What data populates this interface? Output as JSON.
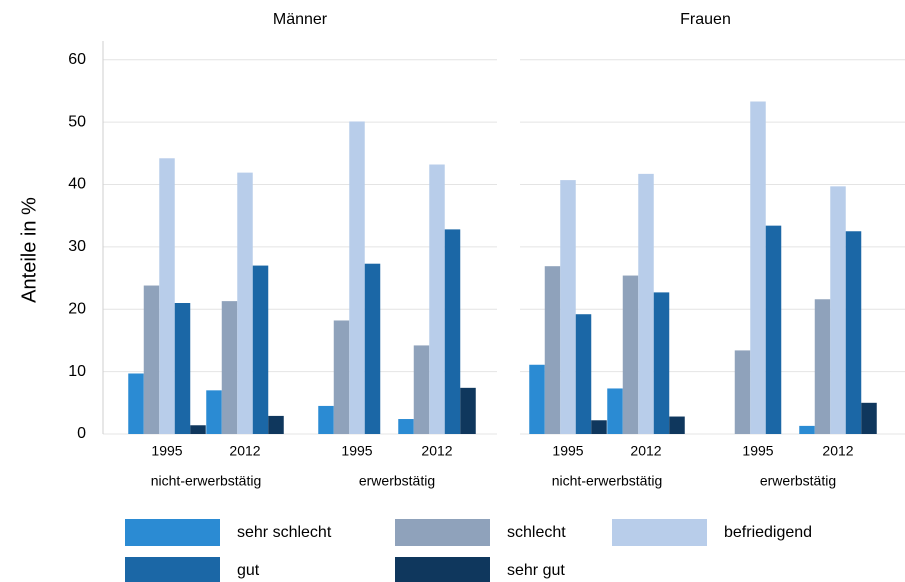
{
  "chart_data": {
    "type": "bar",
    "y_label": "Anteile in %",
    "ylim": [
      0,
      63
    ],
    "yticks": [
      0,
      10,
      20,
      30,
      40,
      50,
      60
    ],
    "grid": true,
    "groups": [
      {
        "label": "nicht-erwerbstätig",
        "categories": [
          "1995",
          "2012"
        ]
      },
      {
        "label": "erwerbstätig",
        "categories": [
          "1995",
          "2012"
        ]
      }
    ],
    "legend": [
      {
        "name": "sehr schlecht",
        "color": "#2b8bd3"
      },
      {
        "name": "schlecht",
        "color": "#8fa2bb"
      },
      {
        "name": "befriedigend",
        "color": "#b8cdea"
      },
      {
        "name": "gut",
        "color": "#1b67a6"
      },
      {
        "name": "sehr gut",
        "color": "#0f375d"
      }
    ],
    "panels": [
      {
        "title": "Männer",
        "series": [
          {
            "values": [
              9.7,
              7.0,
              4.5,
              2.4
            ]
          },
          {
            "values": [
              23.8,
              21.3,
              18.2,
              14.2
            ]
          },
          {
            "values": [
              44.2,
              41.9,
              50.1,
              43.2
            ]
          },
          {
            "values": [
              21.0,
              27.0,
              27.3,
              32.8
            ]
          },
          {
            "values": [
              1.4,
              2.9,
              null,
              7.4
            ]
          }
        ]
      },
      {
        "title": "Frauen",
        "series": [
          {
            "values": [
              11.1,
              7.3,
              null,
              1.3
            ]
          },
          {
            "values": [
              26.9,
              25.4,
              13.4,
              21.6
            ]
          },
          {
            "values": [
              40.7,
              41.7,
              53.3,
              39.7
            ]
          },
          {
            "values": [
              19.2,
              22.7,
              33.4,
              32.5
            ]
          },
          {
            "values": [
              2.2,
              2.8,
              null,
              5.0
            ]
          }
        ]
      }
    ]
  }
}
